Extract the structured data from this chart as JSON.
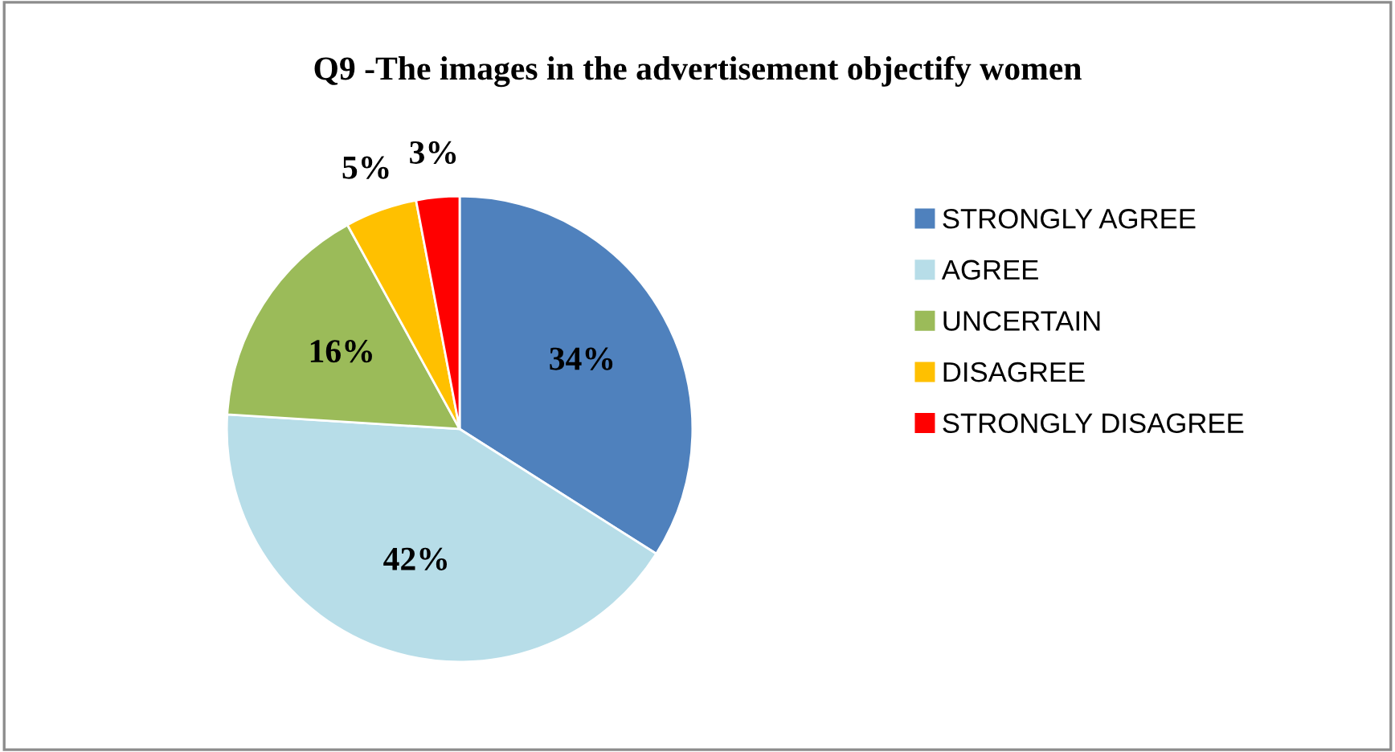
{
  "chart_data": {
    "type": "pie",
    "title": "Q9 -The images in the advertisement objectify women",
    "categories": [
      "STRONGLY AGREE",
      "AGREE",
      "UNCERTAIN",
      "DISAGREE",
      "STRONGLY DISAGREE"
    ],
    "values": [
      34,
      42,
      16,
      5,
      3
    ],
    "colors": [
      "#4f81bd",
      "#b7dde8",
      "#9bbb59",
      "#ffc000",
      "#ff0000"
    ],
    "value_labels": [
      "34%",
      "42%",
      "16%",
      "5%",
      "3%"
    ],
    "legend": "right"
  }
}
